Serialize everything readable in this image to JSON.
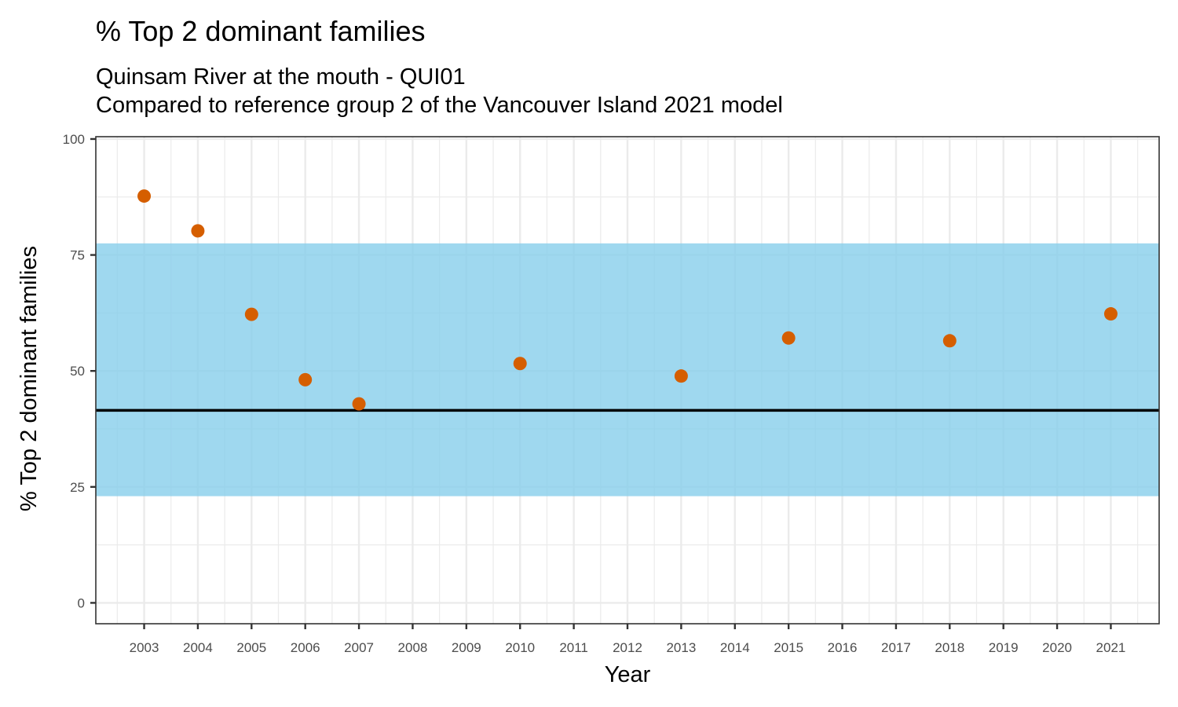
{
  "chart_data": {
    "type": "scatter",
    "title": "% Top 2 dominant families",
    "subtitle_lines": [
      "Quinsam River at the mouth - QUI01",
      "Compared to reference group 2 of the Vancouver Island 2021 model"
    ],
    "xlabel": "Year",
    "ylabel": "% Top 2 dominant families",
    "xlim": [
      2002.1,
      2021.9
    ],
    "ylim": [
      -4.5,
      100.5
    ],
    "x_ticks": [
      2003,
      2004,
      2005,
      2006,
      2007,
      2008,
      2009,
      2010,
      2011,
      2012,
      2013,
      2014,
      2015,
      2016,
      2017,
      2018,
      2019,
      2020,
      2021
    ],
    "y_ticks": [
      0,
      25,
      50,
      75,
      100
    ],
    "grid": true,
    "reference_band": {
      "low": 23,
      "high": 77.5,
      "color": "#87CEEB"
    },
    "reference_line": {
      "value": 41.5,
      "color": "#000000"
    },
    "point_color": "#D55E00",
    "points": [
      {
        "x": 2003,
        "y": 87.7
      },
      {
        "x": 2004,
        "y": 80.2
      },
      {
        "x": 2005,
        "y": 62.2
      },
      {
        "x": 2006,
        "y": 48.1
      },
      {
        "x": 2007,
        "y": 42.9
      },
      {
        "x": 2010,
        "y": 51.6
      },
      {
        "x": 2013,
        "y": 48.9
      },
      {
        "x": 2015,
        "y": 57.1
      },
      {
        "x": 2018,
        "y": 56.5
      },
      {
        "x": 2021,
        "y": 62.3
      }
    ]
  }
}
